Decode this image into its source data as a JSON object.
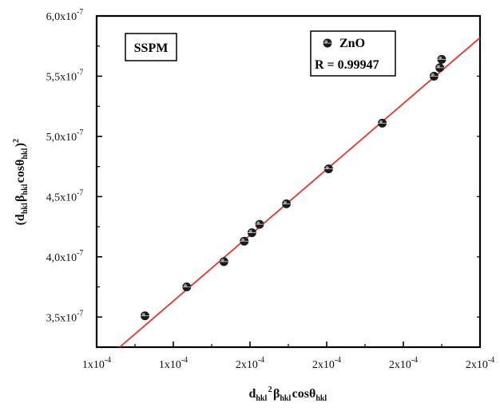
{
  "chart_data": {
    "type": "scatter",
    "annotation": "SSPM",
    "xlabel": {
      "parts": [
        {
          "t": "d",
          "s": ""
        },
        {
          "t": "hkl",
          "s": "sub"
        },
        {
          "t": "2",
          "s": "sup"
        },
        {
          "t": "β",
          "s": ""
        },
        {
          "t": "hkl",
          "s": "sub"
        },
        {
          "t": "cosθ",
          "s": ""
        },
        {
          "t": "hkl",
          "s": "sub"
        }
      ]
    },
    "ylabel": {
      "parts": [
        {
          "t": "(d",
          "s": ""
        },
        {
          "t": "hkl",
          "s": "sub"
        },
        {
          "t": "β",
          "s": ""
        },
        {
          "t": "hkl",
          "s": "sub"
        },
        {
          "t": "cosθ",
          "s": ""
        },
        {
          "t": "hkl",
          "s": "sub"
        },
        {
          "t": ")",
          "s": ""
        },
        {
          "t": "2",
          "s": "sup"
        }
      ]
    },
    "x_ticks": [
      {
        "value": 1.0,
        "base": "1x10",
        "exp": "-4"
      },
      {
        "value": 1.2,
        "base": "1x10",
        "exp": "-4"
      },
      {
        "value": 1.4,
        "base": "2x10",
        "exp": "-4"
      },
      {
        "value": 1.6,
        "base": "2x10",
        "exp": "-4"
      },
      {
        "value": 1.8,
        "base": "2x10",
        "exp": "-4"
      },
      {
        "value": 2.0,
        "base": "2x10",
        "exp": "-4"
      }
    ],
    "y_ticks": [
      {
        "value": 3.5,
        "base": "3,5x10",
        "exp": "-7"
      },
      {
        "value": 4.0,
        "base": "4,0x10",
        "exp": "-7"
      },
      {
        "value": 4.5,
        "base": "4,5x10",
        "exp": "-7"
      },
      {
        "value": 5.0,
        "base": "5,0x10",
        "exp": "-7"
      },
      {
        "value": 5.5,
        "base": "5,5x10",
        "exp": "-7"
      },
      {
        "value": 6.0,
        "base": "6,0x10",
        "exp": "-7"
      }
    ],
    "x_scale_note": "x values in units of 1e-4, y values in units of 1e-7",
    "xlim": [
      1.0,
      2.0
    ],
    "ylim": [
      3.25,
      6.0
    ],
    "series": [
      {
        "name": "ZnO",
        "marker_color": "#111111",
        "x": [
          1.126,
          1.235,
          1.332,
          1.385,
          1.405,
          1.425,
          1.495,
          1.605,
          1.745,
          1.88,
          1.895,
          1.9
        ],
        "y": [
          3.51,
          3.75,
          3.96,
          4.13,
          4.2,
          4.27,
          4.44,
          4.73,
          5.11,
          5.5,
          5.57,
          5.64
        ]
      }
    ],
    "fit": {
      "color": "#e8332a",
      "x": [
        1.06,
        2.0
      ],
      "y": [
        3.25,
        5.82
      ]
    },
    "legend": {
      "placement": "top-right",
      "label": "ZnO",
      "r_text": "R = 0.99947"
    },
    "grid": false
  }
}
